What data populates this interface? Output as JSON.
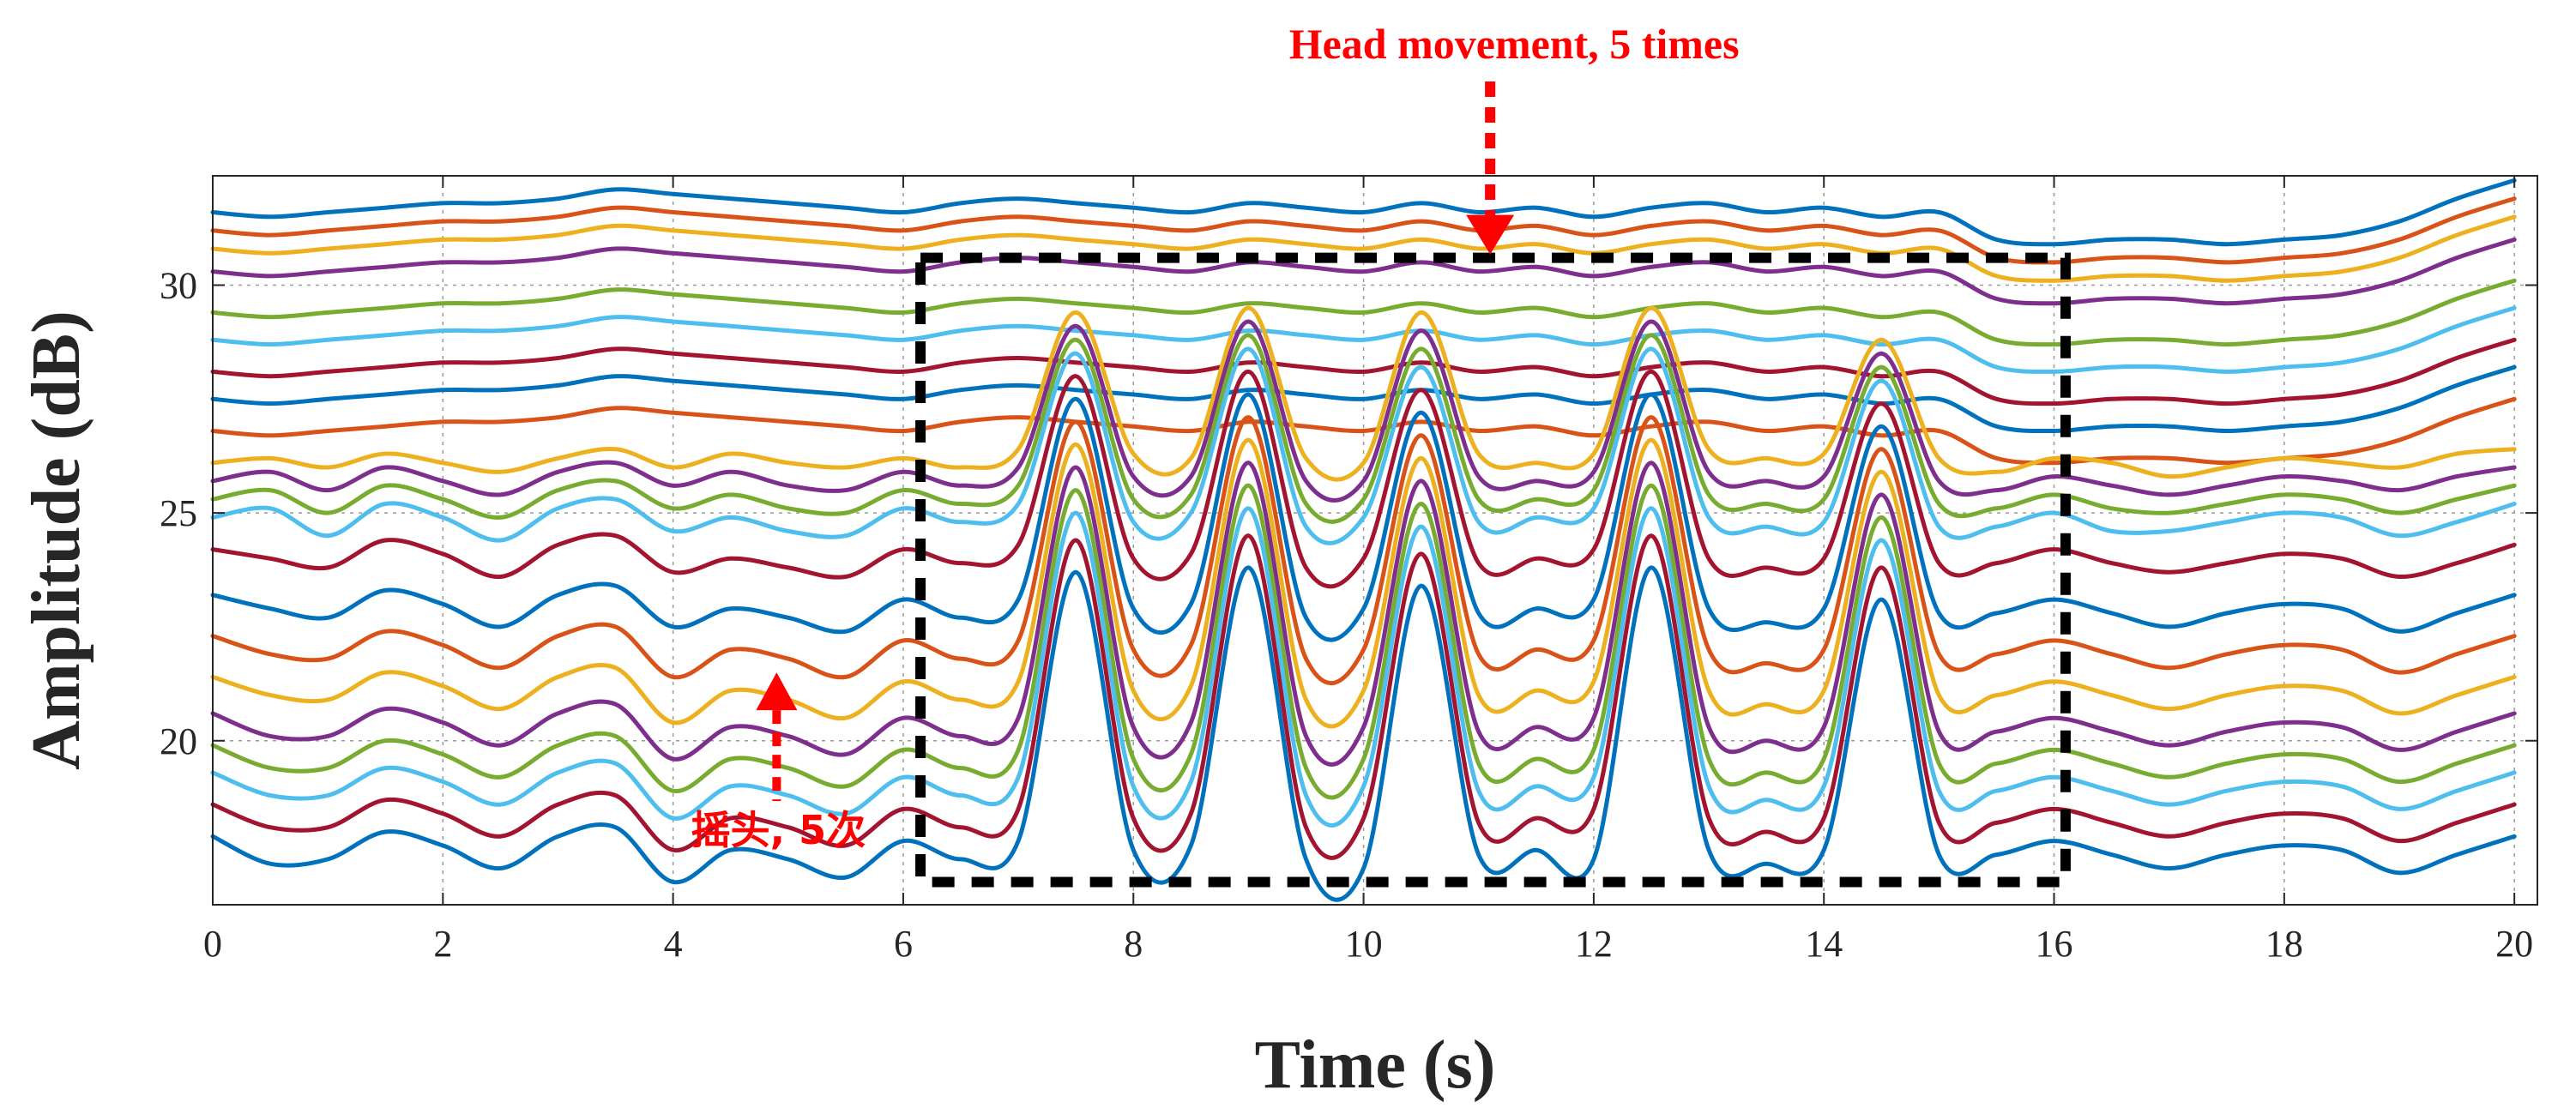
{
  "chart_data": {
    "type": "line",
    "title": "",
    "xlabel": "Time (s)",
    "ylabel": "Amplitude (dB)",
    "xlim": [
      0,
      20.2
    ],
    "ylim": [
      16.4,
      32.4
    ],
    "xticks": [
      0,
      2,
      4,
      6,
      8,
      10,
      12,
      14,
      16,
      18,
      20
    ],
    "yticks": [
      20,
      25,
      30
    ],
    "grid": true,
    "legend": "none",
    "colors": [
      "#0072BD",
      "#D95319",
      "#EDB120",
      "#7E2F8E",
      "#77AC30",
      "#4DBEEE",
      "#A2142F"
    ],
    "x": [
      0,
      0.5,
      1,
      1.5,
      2,
      2.5,
      3,
      3.5,
      4,
      4.5,
      5,
      5.5,
      6,
      6.5,
      7,
      7.5,
      8,
      8.5,
      9,
      9.5,
      10,
      10.5,
      11,
      11.5,
      12,
      12.5,
      13,
      13.5,
      14,
      14.5,
      15,
      15.5,
      16,
      16.5,
      17,
      17.5,
      18,
      18.5,
      19,
      19.5,
      20
    ],
    "series": [
      {
        "values": [
          31.6,
          31.5,
          31.6,
          31.7,
          31.8,
          31.8,
          31.9,
          32.1,
          32.0,
          31.9,
          31.8,
          31.7,
          31.6,
          31.8,
          31.9,
          31.8,
          31.7,
          31.6,
          31.8,
          31.7,
          31.6,
          31.8,
          31.6,
          31.7,
          31.5,
          31.7,
          31.8,
          31.6,
          31.7,
          31.5,
          31.6,
          31.0,
          30.9,
          31.0,
          31.0,
          30.9,
          31.0,
          31.1,
          31.4,
          31.9,
          32.3
        ]
      },
      {
        "values": [
          31.2,
          31.1,
          31.2,
          31.3,
          31.4,
          31.4,
          31.5,
          31.7,
          31.6,
          31.5,
          31.4,
          31.3,
          31.2,
          31.4,
          31.5,
          31.4,
          31.3,
          31.2,
          31.4,
          31.3,
          31.2,
          31.4,
          31.2,
          31.3,
          31.1,
          31.3,
          31.4,
          31.2,
          31.3,
          31.1,
          31.2,
          30.6,
          30.5,
          30.6,
          30.6,
          30.5,
          30.6,
          30.7,
          31.0,
          31.5,
          31.9
        ]
      },
      {
        "values": [
          30.8,
          30.7,
          30.8,
          30.9,
          31.0,
          31.0,
          31.1,
          31.3,
          31.2,
          31.1,
          31.0,
          30.9,
          30.8,
          31.0,
          31.1,
          31.0,
          30.9,
          30.8,
          31.0,
          30.9,
          30.8,
          31.0,
          30.8,
          30.9,
          30.7,
          30.9,
          31.0,
          30.8,
          30.9,
          30.7,
          30.8,
          30.2,
          30.1,
          30.2,
          30.2,
          30.1,
          30.2,
          30.3,
          30.6,
          31.1,
          31.5
        ]
      },
      {
        "values": [
          30.3,
          30.2,
          30.3,
          30.4,
          30.5,
          30.5,
          30.6,
          30.8,
          30.7,
          30.6,
          30.5,
          30.4,
          30.3,
          30.5,
          30.6,
          30.5,
          30.4,
          30.3,
          30.5,
          30.4,
          30.3,
          30.5,
          30.3,
          30.4,
          30.2,
          30.4,
          30.5,
          30.3,
          30.4,
          30.2,
          30.3,
          29.7,
          29.6,
          29.7,
          29.7,
          29.6,
          29.7,
          29.8,
          30.1,
          30.6,
          31.0
        ]
      },
      {
        "values": [
          29.4,
          29.3,
          29.4,
          29.5,
          29.6,
          29.6,
          29.7,
          29.9,
          29.8,
          29.7,
          29.6,
          29.5,
          29.4,
          29.6,
          29.7,
          29.6,
          29.5,
          29.4,
          29.6,
          29.5,
          29.4,
          29.6,
          29.4,
          29.5,
          29.3,
          29.5,
          29.6,
          29.4,
          29.5,
          29.3,
          29.4,
          28.8,
          28.7,
          28.8,
          28.8,
          28.7,
          28.8,
          28.9,
          29.2,
          29.7,
          30.1
        ]
      },
      {
        "values": [
          28.8,
          28.7,
          28.8,
          28.9,
          29.0,
          29.0,
          29.1,
          29.3,
          29.2,
          29.1,
          29.0,
          28.9,
          28.8,
          29.0,
          29.1,
          29.0,
          28.9,
          28.8,
          29.0,
          28.9,
          28.8,
          29.0,
          28.8,
          28.9,
          28.7,
          28.9,
          29.0,
          28.8,
          28.9,
          28.7,
          28.8,
          28.2,
          28.1,
          28.2,
          28.2,
          28.1,
          28.2,
          28.3,
          28.6,
          29.1,
          29.5
        ]
      },
      {
        "values": [
          28.1,
          28.0,
          28.1,
          28.2,
          28.3,
          28.3,
          28.4,
          28.6,
          28.5,
          28.4,
          28.3,
          28.2,
          28.1,
          28.3,
          28.4,
          28.3,
          28.2,
          28.1,
          28.3,
          28.2,
          28.1,
          28.3,
          28.1,
          28.2,
          28.0,
          28.2,
          28.3,
          28.1,
          28.2,
          28.0,
          28.1,
          27.5,
          27.4,
          27.5,
          27.5,
          27.4,
          27.5,
          27.6,
          27.9,
          28.4,
          28.8
        ]
      },
      {
        "values": [
          27.5,
          27.4,
          27.5,
          27.6,
          27.7,
          27.7,
          27.8,
          28.0,
          27.9,
          27.8,
          27.7,
          27.6,
          27.5,
          27.7,
          27.8,
          27.7,
          27.6,
          27.5,
          27.7,
          27.6,
          27.5,
          27.7,
          27.5,
          27.6,
          27.4,
          27.6,
          27.7,
          27.5,
          27.6,
          27.4,
          27.5,
          26.9,
          26.8,
          26.9,
          26.9,
          26.8,
          26.9,
          27.0,
          27.3,
          27.8,
          28.2
        ]
      },
      {
        "values": [
          26.8,
          26.7,
          26.8,
          26.9,
          27.0,
          27.0,
          27.1,
          27.3,
          27.2,
          27.1,
          27.0,
          26.9,
          26.8,
          27.0,
          27.1,
          27.0,
          26.9,
          26.8,
          27.0,
          26.9,
          26.8,
          27.0,
          26.8,
          26.9,
          26.7,
          26.9,
          27.0,
          26.8,
          26.9,
          26.7,
          26.8,
          26.2,
          26.1,
          26.2,
          26.2,
          26.1,
          26.2,
          26.3,
          26.6,
          27.1,
          27.5
        ]
      },
      {
        "values": [
          26.1,
          26.2,
          26.0,
          26.3,
          26.1,
          25.9,
          26.2,
          26.4,
          26.0,
          26.3,
          26.1,
          26.0,
          26.2,
          26.0,
          26.4,
          29.4,
          26.3,
          26.2,
          29.5,
          26.2,
          26.1,
          29.4,
          26.3,
          26.1,
          26.3,
          29.5,
          26.4,
          26.2,
          26.3,
          28.8,
          26.2,
          25.9,
          26.2,
          26.1,
          25.8,
          26.0,
          26.2,
          26.1,
          26.0,
          26.3,
          26.4
        ]
      },
      {
        "values": [
          25.7,
          25.9,
          25.5,
          26.0,
          25.7,
          25.4,
          25.9,
          26.1,
          25.6,
          25.9,
          25.6,
          25.5,
          25.9,
          25.6,
          26.0,
          29.1,
          25.8,
          25.8,
          29.2,
          25.7,
          25.7,
          29.0,
          25.8,
          25.7,
          25.9,
          29.2,
          25.9,
          25.7,
          25.8,
          28.5,
          25.7,
          25.5,
          25.8,
          25.6,
          25.4,
          25.6,
          25.8,
          25.7,
          25.5,
          25.8,
          26.0
        ]
      },
      {
        "values": [
          25.3,
          25.5,
          25.0,
          25.6,
          25.3,
          24.9,
          25.5,
          25.7,
          25.1,
          25.4,
          25.1,
          25.0,
          25.5,
          25.2,
          25.6,
          28.8,
          25.3,
          25.4,
          28.9,
          25.2,
          25.3,
          28.6,
          25.3,
          25.3,
          25.5,
          28.9,
          25.4,
          25.2,
          25.3,
          28.2,
          25.2,
          25.1,
          25.4,
          25.1,
          25.0,
          25.2,
          25.4,
          25.3,
          25.0,
          25.3,
          25.6
        ]
      },
      {
        "values": [
          24.9,
          25.1,
          24.5,
          25.2,
          24.9,
          24.4,
          25.1,
          25.3,
          24.6,
          24.9,
          24.6,
          24.5,
          25.1,
          24.8,
          25.2,
          28.5,
          24.8,
          25.0,
          28.6,
          24.7,
          24.9,
          28.2,
          24.8,
          24.9,
          25.1,
          28.6,
          24.9,
          24.7,
          24.8,
          27.9,
          24.7,
          24.7,
          25.0,
          24.6,
          24.6,
          24.8,
          25.0,
          24.9,
          24.5,
          24.8,
          25.2
        ]
      },
      {
        "values": [
          24.2,
          24.0,
          23.8,
          24.4,
          24.1,
          23.6,
          24.3,
          24.5,
          23.7,
          24.0,
          23.8,
          23.6,
          24.2,
          23.9,
          24.3,
          28.0,
          24.0,
          24.1,
          28.1,
          23.8,
          24.0,
          27.7,
          23.9,
          24.0,
          24.2,
          28.1,
          24.0,
          23.8,
          24.0,
          27.4,
          23.9,
          23.9,
          24.2,
          23.9,
          23.7,
          23.9,
          24.1,
          24.0,
          23.6,
          23.9,
          24.3
        ]
      },
      {
        "values": [
          23.2,
          22.9,
          22.7,
          23.3,
          23.0,
          22.5,
          23.2,
          23.4,
          22.5,
          22.9,
          22.7,
          22.4,
          23.1,
          22.7,
          23.1,
          27.5,
          22.9,
          23.0,
          27.6,
          22.7,
          22.9,
          27.2,
          22.8,
          22.9,
          23.1,
          27.6,
          22.9,
          22.6,
          22.9,
          26.9,
          22.8,
          22.8,
          23.1,
          22.8,
          22.5,
          22.8,
          23.0,
          22.9,
          22.4,
          22.8,
          23.2
        ]
      },
      {
        "values": [
          22.3,
          21.9,
          21.8,
          22.4,
          22.1,
          21.6,
          22.3,
          22.5,
          21.4,
          22.0,
          21.8,
          21.4,
          22.2,
          21.8,
          22.2,
          27.0,
          22.0,
          22.1,
          27.1,
          21.8,
          22.0,
          26.7,
          21.9,
          22.0,
          22.2,
          27.1,
          22.0,
          21.7,
          22.0,
          26.4,
          21.9,
          21.9,
          22.2,
          21.9,
          21.6,
          21.9,
          22.1,
          22.0,
          21.5,
          21.9,
          22.3
        ]
      },
      {
        "values": [
          21.4,
          21.0,
          20.9,
          21.5,
          21.2,
          20.7,
          21.4,
          21.6,
          20.4,
          21.1,
          20.9,
          20.5,
          21.3,
          20.9,
          21.3,
          26.5,
          21.1,
          21.2,
          26.6,
          20.9,
          21.1,
          26.2,
          21.0,
          21.1,
          21.3,
          26.6,
          21.1,
          20.8,
          21.1,
          25.9,
          21.0,
          21.0,
          21.3,
          21.0,
          20.7,
          21.0,
          21.2,
          21.1,
          20.6,
          21.0,
          21.4
        ]
      },
      {
        "values": [
          20.6,
          20.1,
          20.1,
          20.7,
          20.4,
          19.9,
          20.6,
          20.8,
          19.6,
          20.3,
          20.1,
          19.7,
          20.5,
          20.1,
          20.5,
          26.0,
          20.3,
          20.4,
          26.1,
          20.1,
          20.3,
          25.7,
          20.2,
          20.3,
          20.5,
          26.1,
          20.3,
          20.0,
          20.3,
          25.4,
          20.2,
          20.2,
          20.5,
          20.2,
          19.9,
          20.2,
          20.4,
          20.3,
          19.8,
          20.2,
          20.6
        ]
      },
      {
        "values": [
          19.9,
          19.4,
          19.4,
          20.0,
          19.7,
          19.2,
          19.9,
          20.1,
          18.9,
          19.6,
          19.4,
          19.0,
          19.8,
          19.4,
          19.8,
          25.5,
          19.6,
          19.7,
          25.6,
          19.4,
          19.6,
          25.2,
          19.5,
          19.6,
          19.8,
          25.6,
          19.6,
          19.3,
          19.6,
          24.9,
          19.5,
          19.5,
          19.8,
          19.5,
          19.2,
          19.5,
          19.7,
          19.6,
          19.1,
          19.5,
          19.9
        ]
      },
      {
        "values": [
          19.3,
          18.8,
          18.8,
          19.4,
          19.1,
          18.6,
          19.3,
          19.5,
          18.3,
          19.0,
          18.8,
          18.4,
          19.2,
          18.8,
          19.2,
          25.0,
          19.0,
          19.1,
          25.1,
          18.8,
          19.0,
          24.7,
          18.9,
          19.0,
          19.2,
          25.1,
          19.0,
          18.7,
          19.0,
          24.4,
          18.9,
          18.9,
          19.2,
          18.9,
          18.6,
          18.9,
          19.1,
          19.0,
          18.5,
          18.9,
          19.3
        ]
      },
      {
        "values": [
          18.6,
          18.1,
          18.1,
          18.7,
          18.4,
          17.9,
          18.6,
          18.8,
          17.6,
          18.3,
          18.1,
          17.7,
          18.5,
          18.1,
          18.5,
          24.4,
          18.3,
          18.4,
          24.5,
          18.1,
          18.3,
          24.1,
          18.2,
          18.3,
          18.5,
          24.5,
          18.3,
          18.0,
          18.3,
          23.8,
          18.2,
          18.2,
          18.5,
          18.2,
          17.9,
          18.2,
          18.4,
          18.3,
          17.8,
          18.2,
          18.6
        ]
      },
      {
        "values": [
          17.9,
          17.3,
          17.4,
          18.0,
          17.7,
          17.2,
          17.9,
          18.1,
          16.9,
          17.6,
          17.4,
          17.0,
          17.8,
          17.4,
          17.8,
          23.7,
          17.6,
          17.7,
          23.8,
          17.4,
          17.2,
          23.4,
          17.5,
          17.6,
          17.4,
          23.8,
          17.6,
          17.3,
          17.6,
          23.1,
          17.5,
          17.5,
          17.8,
          17.5,
          17.2,
          17.5,
          17.7,
          17.6,
          17.1,
          17.5,
          17.9
        ]
      }
    ],
    "box": {
      "x0": 6.15,
      "x1": 16.1,
      "y0": 16.9,
      "y1": 30.6
    },
    "annotations": [
      {
        "text": "Head movement, 5 times",
        "x": 11.1,
        "y": 30.6
      },
      {
        "text": "摇头, 5次",
        "x": 4.9,
        "y": 21.5
      }
    ]
  }
}
